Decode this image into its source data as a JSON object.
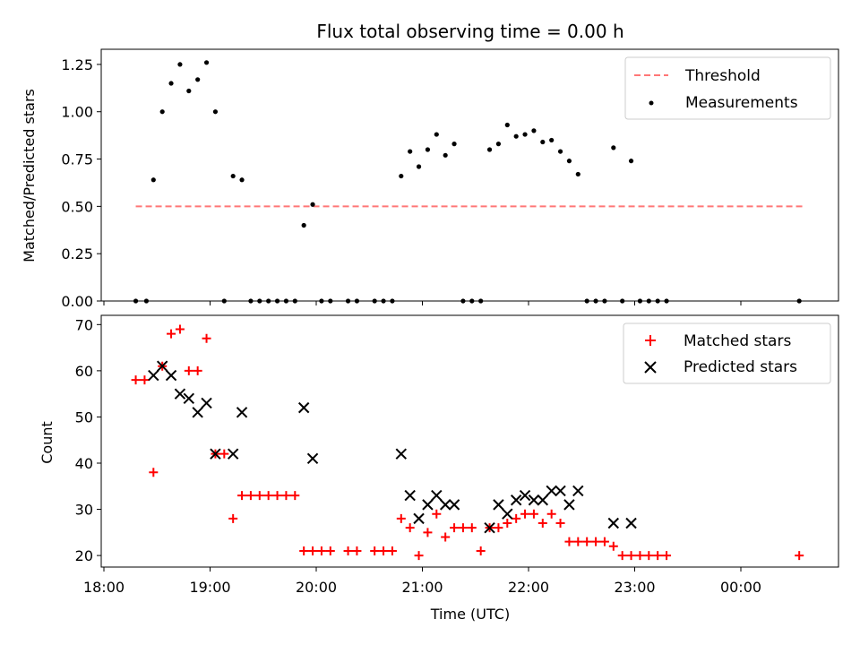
{
  "chart_data": [
    {
      "type": "scatter",
      "title": "Flux total observing time = 0.00 h",
      "xlabel": "",
      "ylabel": "Matched/Predicted stars",
      "ylim": [
        0,
        1.33
      ],
      "yticks": [
        "0.00",
        "0.25",
        "0.50",
        "0.75",
        "1.00",
        "1.25"
      ],
      "legend_position": "top-right",
      "threshold": {
        "name": "Threshold",
        "value": 0.5,
        "x_start": "18:18",
        "x_end": "00:36",
        "color": "#ff7777"
      },
      "series": [
        {
          "name": "Measurements",
          "color": "#000000",
          "points": [
            [
              "18:18",
              0
            ],
            [
              "18:24",
              0
            ],
            [
              "18:28",
              0.64
            ],
            [
              "18:33",
              1.0
            ],
            [
              "18:38",
              1.15
            ],
            [
              "18:43",
              1.25
            ],
            [
              "18:48",
              1.11
            ],
            [
              "18:53",
              1.17
            ],
            [
              "18:58",
              1.26
            ],
            [
              "19:03",
              1.0
            ],
            [
              "19:08",
              0
            ],
            [
              "19:13",
              0.66
            ],
            [
              "19:18",
              0.64
            ],
            [
              "19:23",
              0
            ],
            [
              "19:28",
              0
            ],
            [
              "19:33",
              0
            ],
            [
              "19:38",
              0
            ],
            [
              "19:43",
              0
            ],
            [
              "19:48",
              0
            ],
            [
              "19:53",
              0.4
            ],
            [
              "19:58",
              0.51
            ],
            [
              "20:03",
              0
            ],
            [
              "20:08",
              0
            ],
            [
              "20:18",
              0
            ],
            [
              "20:23",
              0
            ],
            [
              "20:33",
              0
            ],
            [
              "20:38",
              0
            ],
            [
              "20:43",
              0
            ],
            [
              "20:48",
              0.66
            ],
            [
              "20:53",
              0.79
            ],
            [
              "20:58",
              0.71
            ],
            [
              "21:03",
              0.8
            ],
            [
              "21:08",
              0.88
            ],
            [
              "21:13",
              0.77
            ],
            [
              "21:18",
              0.83
            ],
            [
              "21:23",
              0
            ],
            [
              "21:28",
              0
            ],
            [
              "21:33",
              0
            ],
            [
              "21:38",
              0.8
            ],
            [
              "21:43",
              0.83
            ],
            [
              "21:48",
              0.93
            ],
            [
              "21:53",
              0.87
            ],
            [
              "21:58",
              0.88
            ],
            [
              "22:03",
              0.9
            ],
            [
              "22:08",
              0.84
            ],
            [
              "22:13",
              0.85
            ],
            [
              "22:18",
              0.79
            ],
            [
              "22:23",
              0.74
            ],
            [
              "22:28",
              0.67
            ],
            [
              "22:33",
              0
            ],
            [
              "22:38",
              0
            ],
            [
              "22:43",
              0
            ],
            [
              "22:48",
              0.81
            ],
            [
              "22:53",
              0
            ],
            [
              "22:58",
              0.74
            ],
            [
              "23:03",
              0
            ],
            [
              "23:08",
              0
            ],
            [
              "23:13",
              0
            ],
            [
              "23:18",
              0
            ],
            [
              "00:33",
              0
            ]
          ]
        }
      ]
    },
    {
      "type": "scatter",
      "title": "",
      "xlabel": "Time (UTC)",
      "ylabel": "Count",
      "ylim": [
        17.5,
        72
      ],
      "yticks": [
        "20",
        "30",
        "40",
        "50",
        "60",
        "70"
      ],
      "xticks": [
        "18:00",
        "19:00",
        "20:00",
        "21:00",
        "22:00",
        "23:00",
        "00:00"
      ],
      "legend_position": "top-right",
      "series": [
        {
          "name": "Matched stars",
          "marker": "+",
          "color": "#ff0000",
          "points": [
            [
              "18:18",
              58
            ],
            [
              "18:23",
              58
            ],
            [
              "18:28",
              38
            ],
            [
              "18:33",
              61
            ],
            [
              "18:38",
              68
            ],
            [
              "18:43",
              69
            ],
            [
              "18:48",
              60
            ],
            [
              "18:53",
              60
            ],
            [
              "18:58",
              67
            ],
            [
              "19:03",
              42
            ],
            [
              "19:08",
              42
            ],
            [
              "19:13",
              28
            ],
            [
              "19:18",
              33
            ],
            [
              "19:23",
              33
            ],
            [
              "19:28",
              33
            ],
            [
              "19:33",
              33
            ],
            [
              "19:38",
              33
            ],
            [
              "19:43",
              33
            ],
            [
              "19:48",
              33
            ],
            [
              "19:53",
              21
            ],
            [
              "19:58",
              21
            ],
            [
              "20:03",
              21
            ],
            [
              "20:08",
              21
            ],
            [
              "20:18",
              21
            ],
            [
              "20:23",
              21
            ],
            [
              "20:33",
              21
            ],
            [
              "20:38",
              21
            ],
            [
              "20:43",
              21
            ],
            [
              "20:48",
              28
            ],
            [
              "20:53",
              26
            ],
            [
              "20:58",
              20
            ],
            [
              "21:03",
              25
            ],
            [
              "21:08",
              29
            ],
            [
              "21:13",
              24
            ],
            [
              "21:18",
              26
            ],
            [
              "21:23",
              26
            ],
            [
              "21:28",
              26
            ],
            [
              "21:33",
              21
            ],
            [
              "21:38",
              26
            ],
            [
              "21:43",
              26
            ],
            [
              "21:48",
              27
            ],
            [
              "21:53",
              28
            ],
            [
              "21:58",
              29
            ],
            [
              "22:03",
              29
            ],
            [
              "22:08",
              27
            ],
            [
              "22:13",
              29
            ],
            [
              "22:18",
              27
            ],
            [
              "22:23",
              23
            ],
            [
              "22:28",
              23
            ],
            [
              "22:33",
              23
            ],
            [
              "22:38",
              23
            ],
            [
              "22:43",
              23
            ],
            [
              "22:48",
              22
            ],
            [
              "22:53",
              20
            ],
            [
              "22:58",
              20
            ],
            [
              "23:03",
              20
            ],
            [
              "23:08",
              20
            ],
            [
              "23:13",
              20
            ],
            [
              "23:18",
              20
            ],
            [
              "00:33",
              20
            ]
          ]
        },
        {
          "name": "Predicted stars",
          "marker": "x",
          "color": "#000000",
          "points": [
            [
              "18:28",
              59
            ],
            [
              "18:33",
              61
            ],
            [
              "18:38",
              59
            ],
            [
              "18:43",
              55
            ],
            [
              "18:48",
              54
            ],
            [
              "18:53",
              51
            ],
            [
              "18:58",
              53
            ],
            [
              "19:03",
              42
            ],
            [
              "19:13",
              42
            ],
            [
              "19:18",
              51
            ],
            [
              "19:53",
              52
            ],
            [
              "19:58",
              41
            ],
            [
              "20:48",
              42
            ],
            [
              "20:53",
              33
            ],
            [
              "20:58",
              28
            ],
            [
              "21:03",
              31
            ],
            [
              "21:08",
              33
            ],
            [
              "21:13",
              31
            ],
            [
              "21:18",
              31
            ],
            [
              "21:38",
              26
            ],
            [
              "21:43",
              31
            ],
            [
              "21:48",
              29
            ],
            [
              "21:53",
              32
            ],
            [
              "21:58",
              33
            ],
            [
              "22:03",
              32
            ],
            [
              "22:08",
              32
            ],
            [
              "22:13",
              34
            ],
            [
              "22:18",
              34
            ],
            [
              "22:23",
              31
            ],
            [
              "22:28",
              34
            ],
            [
              "22:48",
              27
            ],
            [
              "22:58",
              27
            ]
          ]
        }
      ]
    }
  ]
}
